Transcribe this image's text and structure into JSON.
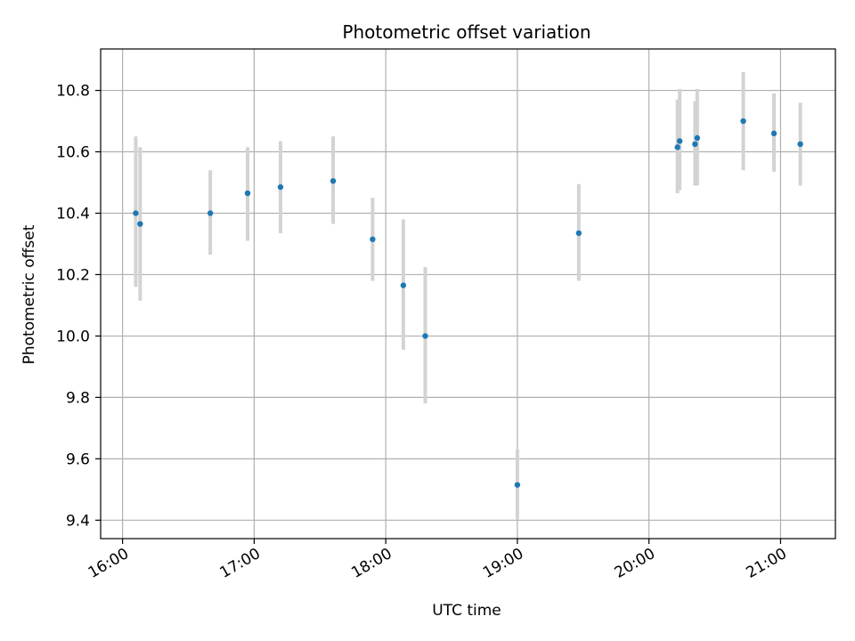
{
  "chart_data": {
    "type": "scatter",
    "title": "Photometric offset variation",
    "xlabel": "UTC time",
    "ylabel": "Photometric offset",
    "x_unit": "UTC time (HH:MM)",
    "xlim": [
      "15:50",
      "21:25"
    ],
    "ylim": [
      9.34,
      10.935
    ],
    "x_ticks": [
      "16:00",
      "17:00",
      "18:00",
      "19:00",
      "20:00",
      "21:00"
    ],
    "y_ticks": [
      9.4,
      9.6,
      9.8,
      10.0,
      10.2,
      10.4,
      10.6,
      10.8
    ],
    "y_tick_labels": [
      "9.4",
      "9.6",
      "9.8",
      "10.0",
      "10.2",
      "10.4",
      "10.6",
      "10.8"
    ],
    "grid": true,
    "marker_color": "#1f77b4",
    "errorbar_color": "#d3d3d3",
    "series": [
      {
        "points": [
          {
            "x": "16:06",
            "y": 10.4,
            "ylow": 10.16,
            "yhigh": 10.65
          },
          {
            "x": "16:08",
            "y": 10.365,
            "ylow": 10.115,
            "yhigh": 10.615
          },
          {
            "x": "16:40",
            "y": 10.4,
            "ylow": 10.265,
            "yhigh": 10.54
          },
          {
            "x": "16:57",
            "y": 10.465,
            "ylow": 10.31,
            "yhigh": 10.615
          },
          {
            "x": "17:12",
            "y": 10.485,
            "ylow": 10.335,
            "yhigh": 10.635
          },
          {
            "x": "17:36",
            "y": 10.505,
            "ylow": 10.365,
            "yhigh": 10.65
          },
          {
            "x": "17:54",
            "y": 10.315,
            "ylow": 10.18,
            "yhigh": 10.45
          },
          {
            "x": "18:08",
            "y": 10.165,
            "ylow": 9.955,
            "yhigh": 10.38
          },
          {
            "x": "18:18",
            "y": 10.0,
            "ylow": 9.78,
            "yhigh": 10.225
          },
          {
            "x": "19:00",
            "y": 9.515,
            "ylow": 9.405,
            "yhigh": 9.63
          },
          {
            "x": "19:28",
            "y": 10.335,
            "ylow": 10.18,
            "yhigh": 10.495
          },
          {
            "x": "20:13",
            "y": 10.615,
            "ylow": 10.465,
            "yhigh": 10.77
          },
          {
            "x": "20:14",
            "y": 10.635,
            "ylow": 10.475,
            "yhigh": 10.805
          },
          {
            "x": "20:21",
            "y": 10.625,
            "ylow": 10.49,
            "yhigh": 10.765
          },
          {
            "x": "20:22",
            "y": 10.645,
            "ylow": 10.49,
            "yhigh": 10.805
          },
          {
            "x": "20:43",
            "y": 10.7,
            "ylow": 10.54,
            "yhigh": 10.86
          },
          {
            "x": "20:57",
            "y": 10.66,
            "ylow": 10.535,
            "yhigh": 10.79
          },
          {
            "x": "21:09",
            "y": 10.625,
            "ylow": 10.49,
            "yhigh": 10.76
          }
        ]
      }
    ]
  }
}
